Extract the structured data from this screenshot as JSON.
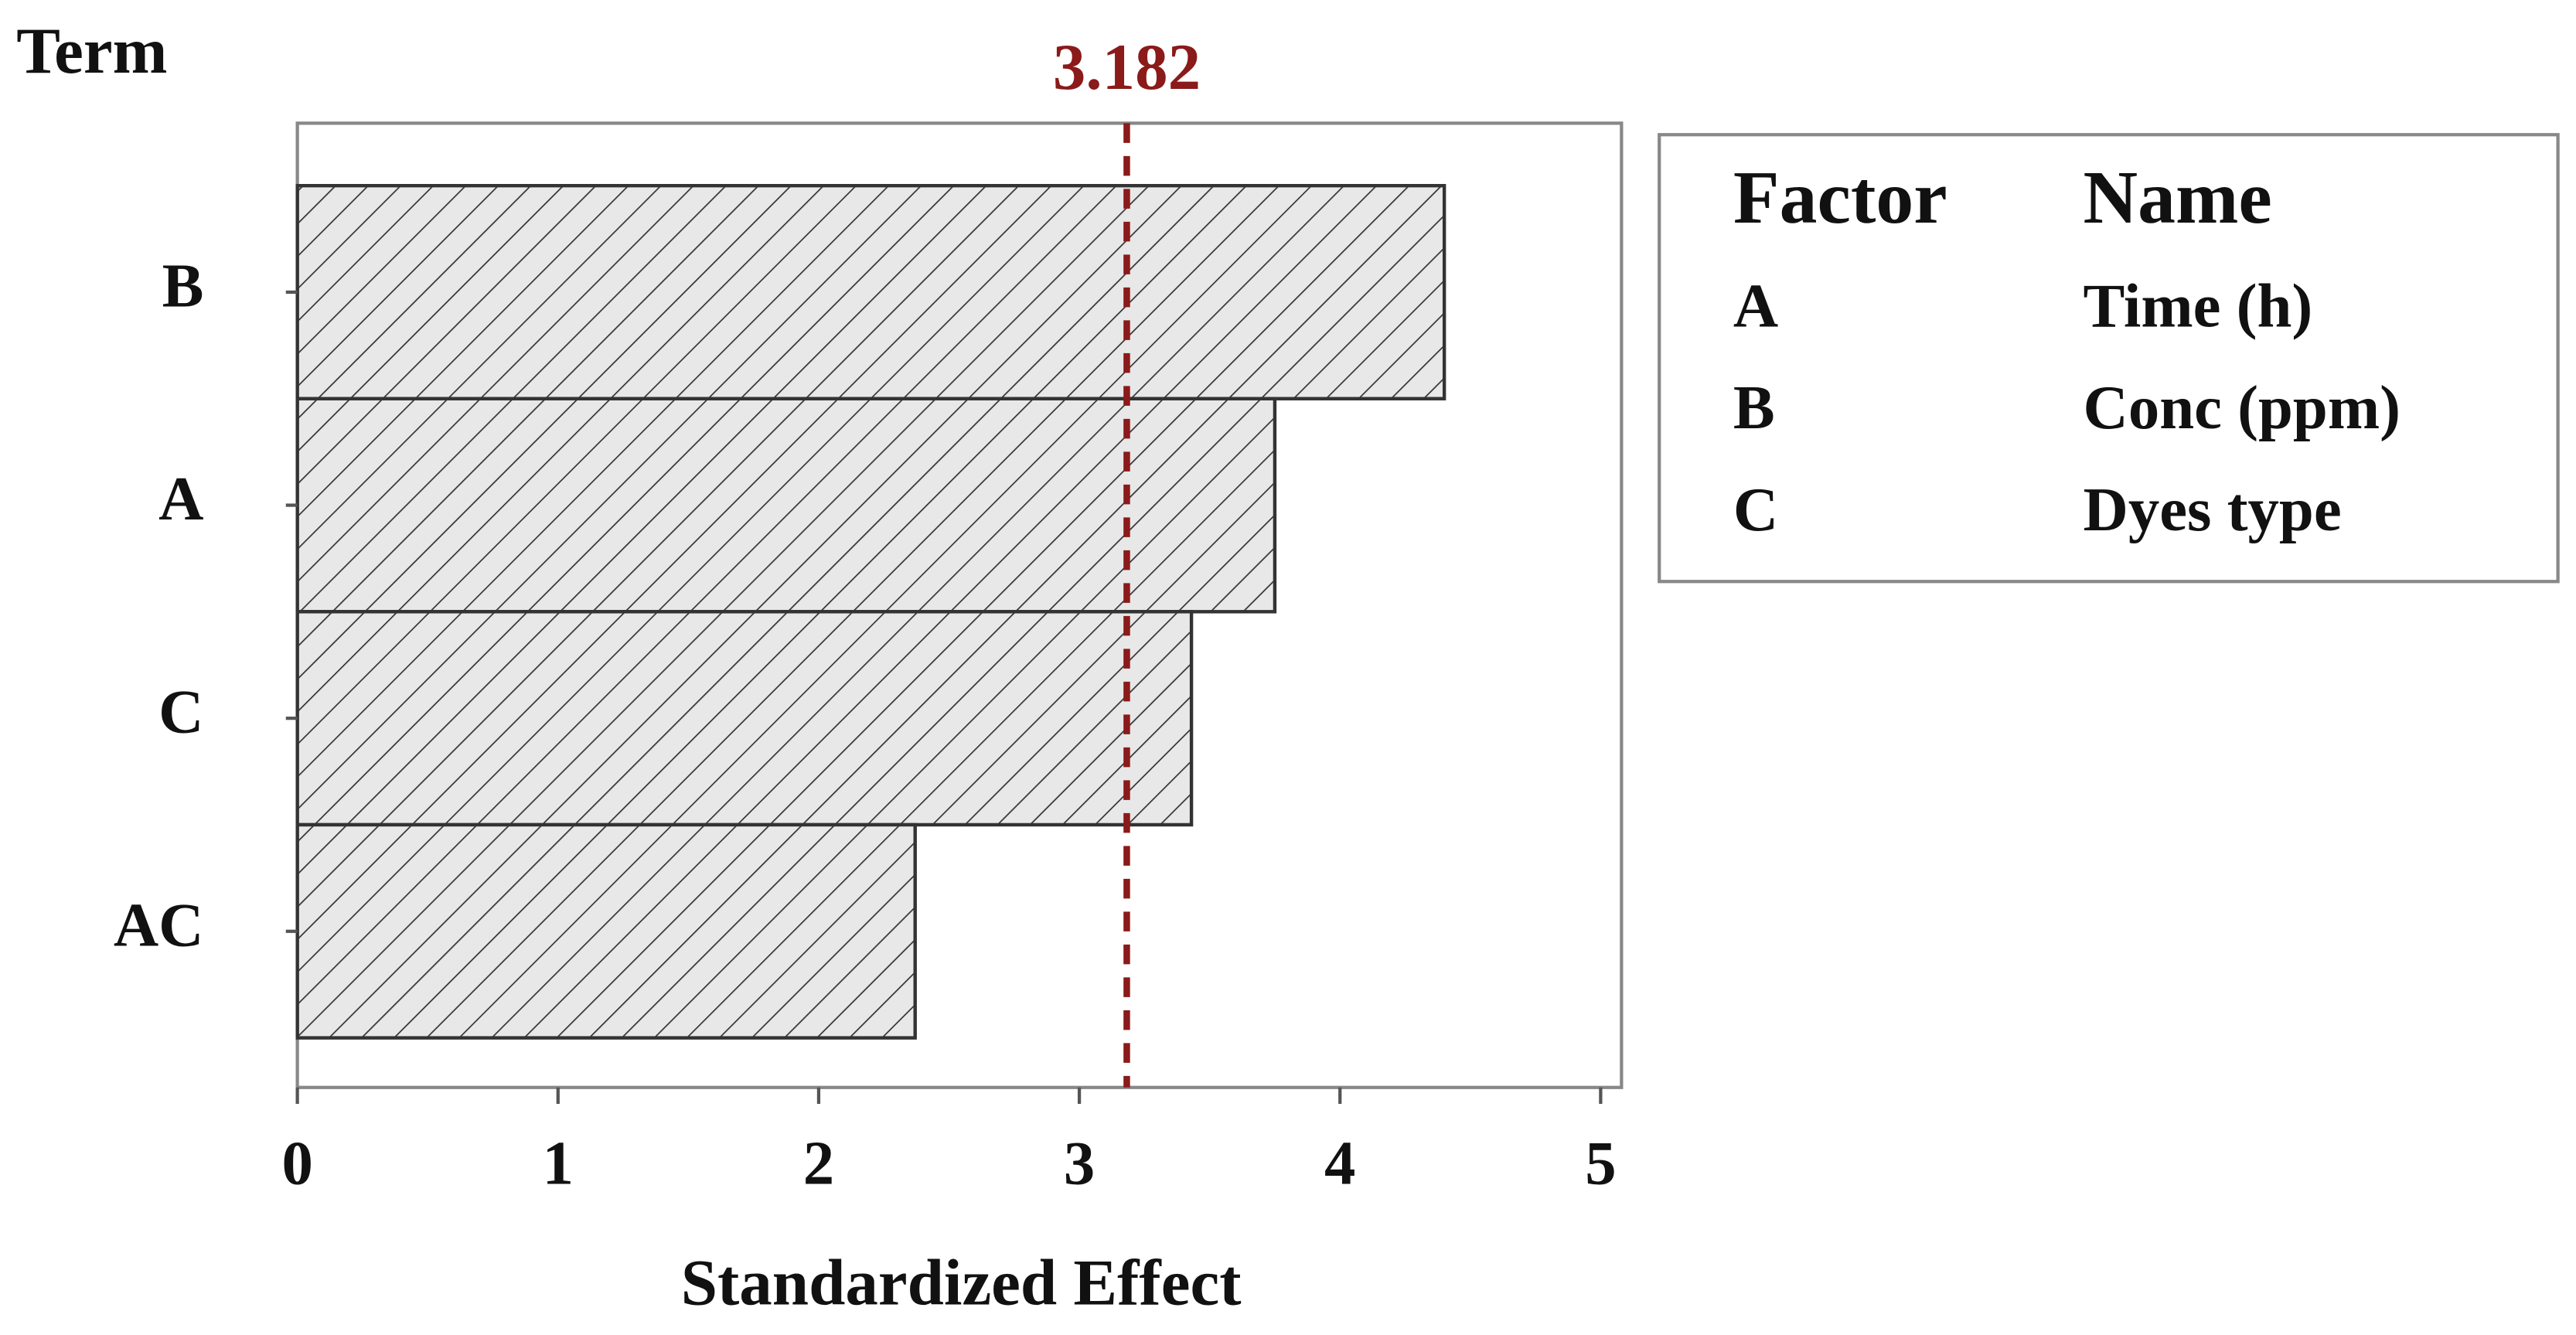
{
  "chart_data": {
    "type": "bar",
    "orientation": "horizontal",
    "y_label": "Term",
    "x_label": "Standardized Effect",
    "categories": [
      "B",
      "A",
      "C",
      "AC"
    ],
    "values": [
      4.4,
      3.75,
      3.43,
      2.37
    ],
    "color": "#e8e8e8",
    "hatch": true,
    "xlim": [
      0,
      5.08
    ],
    "xticks": [
      0,
      1,
      2,
      3,
      4,
      5
    ],
    "reference_line": 3.182,
    "reference_color": "#8b1a1a",
    "factor_table": {
      "headers": [
        "Factor",
        "Name"
      ],
      "rows": [
        [
          "A",
          "Time (h)"
        ],
        [
          "B",
          "Conc (ppm)"
        ],
        [
          "C",
          "Dyes type"
        ]
      ]
    }
  }
}
